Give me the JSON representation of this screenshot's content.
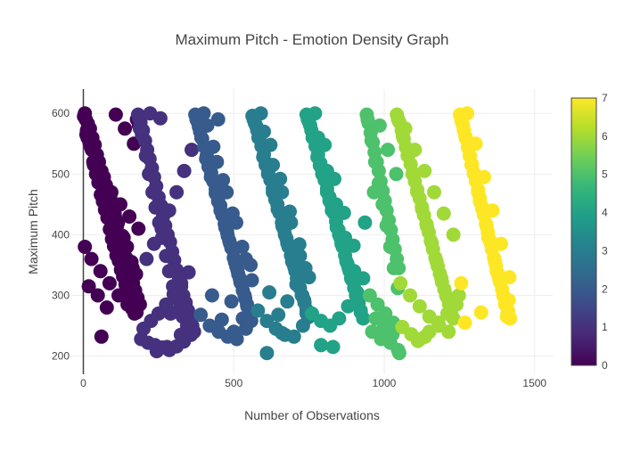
{
  "chart_data": {
    "type": "scatter",
    "title": "Maximum Pitch - Emotion Density Graph",
    "xlabel": "Number of Observations",
    "ylabel": "Maximum Pitch",
    "xlim": [
      -40,
      1560
    ],
    "ylim": [
      170,
      640
    ],
    "x_ticks": [
      0,
      500,
      1000,
      1500
    ],
    "y_ticks": [
      200,
      300,
      400,
      500,
      600
    ],
    "grid": true,
    "legend": "none",
    "colorbar": {
      "position": "right",
      "min": 0,
      "max": 7,
      "ticks": [
        0,
        1,
        2,
        3,
        4,
        5,
        6,
        7
      ],
      "colorscale": "Viridis",
      "colors": [
        "#440154",
        "#482878",
        "#3e4989",
        "#31688e",
        "#26828e",
        "#1f9e89",
        "#35b779",
        "#6ece58",
        "#b5de2b",
        "#fde725"
      ]
    },
    "color_variable_note_free": true,
    "groups": [
      {
        "emotion_value": 0,
        "x_range": [
          0,
          190
        ],
        "y_range": [
          230,
          600
        ],
        "x": [
          2,
          8,
          15,
          22,
          30,
          38,
          45,
          52,
          60,
          68,
          75,
          82,
          90,
          98,
          105,
          112,
          120,
          128,
          135,
          142,
          150,
          158,
          165,
          172,
          180,
          188,
          5,
          12,
          20,
          28,
          35,
          42,
          50,
          58,
          65,
          72,
          80,
          88,
          95,
          102,
          110,
          118,
          125,
          132,
          140,
          148,
          155,
          162,
          170,
          178,
          185,
          10,
          25,
          40,
          55,
          70,
          85,
          100,
          115,
          130,
          145,
          160,
          175,
          18,
          48,
          78,
          108,
          138,
          168,
          33,
          63,
          93,
          123,
          153,
          183,
          5,
          27,
          57,
          87,
          117,
          147,
          177,
          14,
          44,
          74,
          104,
          134,
          164,
          60
        ],
        "y": [
          595,
          590,
          583,
          575,
          560,
          548,
          532,
          520,
          505,
          495,
          482,
          470,
          460,
          445,
          430,
          415,
          400,
          388,
          375,
          362,
          350,
          335,
          320,
          308,
          296,
          285,
          600,
          572,
          553,
          540,
          515,
          500,
          486,
          466,
          455,
          441,
          428,
          409,
          393,
          381,
          366,
          357,
          342,
          331,
          318,
          305,
          292,
          278,
          270,
          590,
          580,
          565,
          545,
          525,
          505,
          485,
          465,
          440,
          420,
          398,
          380,
          355,
          335,
          315,
          300,
          280,
          598,
          575,
          550,
          520,
          490,
          470,
          450,
          430,
          410,
          380,
          360,
          340,
          320,
          300,
          285,
          272,
          560,
          530,
          480,
          435,
          395,
          345,
          232
        ]
      },
      {
        "emotion_value": 1,
        "x_range": [
          180,
          370
        ],
        "y_range": [
          205,
          600
        ],
        "x": [
          182,
          190,
          198,
          205,
          212,
          220,
          228,
          235,
          242,
          250,
          258,
          265,
          272,
          280,
          288,
          295,
          302,
          310,
          318,
          325,
          332,
          340,
          348,
          355,
          362,
          368,
          185,
          195,
          208,
          218,
          230,
          240,
          252,
          262,
          275,
          285,
          298,
          308,
          320,
          330,
          345,
          358,
          192,
          215,
          238,
          262,
          286,
          310,
          334,
          358,
          200,
          225,
          250,
          275,
          300,
          325,
          350,
          210,
          235,
          260,
          285,
          310,
          335,
          360,
          188,
          222,
          256,
          290,
          324,
          352,
          244,
          278
        ],
        "y": [
          598,
          585,
          572,
          555,
          540,
          525,
          510,
          495,
          480,
          462,
          448,
          430,
          415,
          400,
          388,
          372,
          358,
          342,
          330,
          315,
          300,
          288,
          275,
          262,
          250,
          240,
          592,
          565,
          530,
          500,
          470,
          445,
          420,
          395,
          365,
          340,
          315,
          295,
          278,
          265,
          250,
          238,
          228,
          222,
          218,
          214,
          210,
          216,
          224,
          235,
          245,
          258,
          270,
          285,
          302,
          320,
          338,
          360,
          385,
          410,
          440,
          470,
          505,
          540,
          575,
          600,
          592,
          270,
          235,
          260,
          208,
          215
        ]
      },
      {
        "emotion_value": 2,
        "x_range": [
          370,
          560
        ],
        "y_range": [
          225,
          600
        ],
        "x": [
          372,
          380,
          388,
          395,
          402,
          410,
          418,
          425,
          432,
          440,
          448,
          455,
          462,
          470,
          478,
          485,
          492,
          500,
          508,
          515,
          522,
          530,
          538,
          545,
          552,
          558,
          376,
          392,
          408,
          424,
          440,
          456,
          472,
          488,
          504,
          520,
          536,
          552,
          384,
          416,
          448,
          480,
          512,
          544,
          400,
          432,
          464,
          496,
          528,
          560,
          390,
          420,
          450,
          480,
          510,
          540,
          412,
          444,
          476,
          508,
          540,
          428,
          460,
          492,
          524,
          556,
          448,
          500,
          530
        ],
        "y": [
          598,
          586,
          570,
          558,
          545,
          530,
          516,
          502,
          488,
          475,
          460,
          448,
          432,
          418,
          404,
          390,
          378,
          362,
          348,
          335,
          322,
          308,
          295,
          282,
          270,
          258,
          590,
          560,
          525,
          495,
          468,
          440,
          412,
          385,
          355,
          328,
          300,
          272,
          578,
          512,
          455,
          398,
          342,
          285,
          600,
          545,
          490,
          435,
          380,
          325,
          268,
          250,
          240,
          232,
          228,
          245,
          580,
          520,
          470,
          420,
          360,
          300,
          260,
          290,
          320,
          350,
          590,
          240,
          262
        ]
      },
      {
        "emotion_value": 3,
        "x_range": [
          560,
          750
        ],
        "y_range": [
          205,
          600
        ],
        "x": [
          562,
          570,
          578,
          585,
          592,
          600,
          608,
          615,
          622,
          630,
          638,
          645,
          652,
          660,
          668,
          675,
          682,
          690,
          698,
          705,
          712,
          720,
          728,
          735,
          742,
          748,
          566,
          582,
          598,
          614,
          630,
          646,
          662,
          678,
          694,
          710,
          726,
          742,
          574,
          606,
          638,
          670,
          702,
          734,
          590,
          622,
          654,
          686,
          718,
          750,
          580,
          610,
          640,
          670,
          700,
          730,
          600,
          630,
          660,
          690,
          720,
          618,
          648,
          678,
          708,
          738,
          610,
          660
        ],
        "y": [
          596,
          584,
          572,
          560,
          546,
          532,
          518,
          505,
          490,
          476,
          462,
          450,
          436,
          420,
          408,
          394,
          380,
          366,
          352,
          340,
          326,
          312,
          300,
          288,
          276,
          264,
          590,
          560,
          528,
          500,
          470,
          442,
          414,
          386,
          356,
          328,
          300,
          270,
          580,
          515,
          458,
          400,
          346,
          292,
          600,
          548,
          492,
          438,
          384,
          330,
          275,
          258,
          245,
          235,
          232,
          250,
          570,
          515,
          470,
          420,
          365,
          305,
          268,
          290,
          318,
          345,
          205,
          238
        ]
      },
      {
        "emotion_value": 4,
        "x_range": [
          740,
          940
        ],
        "y_range": [
          210,
          600
        ],
        "x": [
          742,
          750,
          758,
          765,
          772,
          780,
          788,
          795,
          802,
          810,
          818,
          825,
          832,
          840,
          848,
          855,
          862,
          870,
          878,
          885,
          892,
          900,
          908,
          915,
          922,
          930,
          746,
          762,
          778,
          794,
          810,
          826,
          842,
          858,
          874,
          890,
          906,
          922,
          754,
          786,
          818,
          850,
          882,
          914,
          770,
          802,
          834,
          866,
          898,
          930,
          760,
          790,
          820,
          850,
          880,
          910,
          780,
          810,
          840,
          870,
          900,
          936,
          790,
          830
        ],
        "y": [
          598,
          586,
          572,
          560,
          546,
          532,
          518,
          504,
          490,
          476,
          462,
          450,
          436,
          422,
          408,
          394,
          380,
          366,
          352,
          340,
          326,
          312,
          300,
          288,
          275,
          262,
          590,
          560,
          528,
          500,
          470,
          440,
          412,
          385,
          356,
          328,
          300,
          272,
          580,
          514,
          456,
          400,
          345,
          292,
          600,
          548,
          492,
          436,
          382,
          328,
          270,
          258,
          250,
          262,
          282,
          305,
          560,
          505,
          450,
          395,
          340,
          420,
          218,
          215
        ]
      },
      {
        "emotion_value": 5,
        "x_range": [
          940,
          1050
        ],
        "y_range": [
          200,
          600
        ],
        "x": [
          942,
          948,
          955,
          962,
          968,
          975,
          982,
          988,
          995,
          1002,
          1008,
          1015,
          1022,
          1028,
          1035,
          1042,
          1048,
          945,
          958,
          970,
          982,
          995,
          1008,
          1020,
          1032,
          1045,
          952,
          978,
          1004,
          1030,
          960,
          990,
          1020,
          1046,
          972,
          1000,
          1028,
          985,
          1012,
          1040,
          966,
          1050
        ],
        "y": [
          598,
          584,
          568,
          552,
          536,
          520,
          505,
          488,
          472,
          456,
          440,
          424,
          408,
          392,
          376,
          360,
          345,
          590,
          555,
          520,
          485,
          450,
          415,
          380,
          345,
          312,
          300,
          285,
          270,
          255,
          240,
          228,
          222,
          210,
          262,
          248,
          236,
          580,
          540,
          500,
          470,
          205
        ]
      },
      {
        "emotion_value": 6,
        "x_range": [
          1040,
          1250
        ],
        "y_range": [
          220,
          600
        ],
        "x": [
          1042,
          1050,
          1058,
          1065,
          1072,
          1080,
          1088,
          1095,
          1102,
          1110,
          1118,
          1125,
          1132,
          1140,
          1148,
          1155,
          1162,
          1170,
          1178,
          1185,
          1192,
          1200,
          1208,
          1215,
          1222,
          1230,
          1046,
          1062,
          1078,
          1094,
          1110,
          1126,
          1142,
          1158,
          1174,
          1190,
          1206,
          1222,
          1054,
          1086,
          1118,
          1150,
          1182,
          1214,
          1070,
          1102,
          1134,
          1166,
          1198,
          1230,
          1060,
          1090,
          1120,
          1150,
          1180,
          1210,
          1240,
          1248,
          1112,
          1136
        ],
        "y": [
          598,
          586,
          572,
          558,
          544,
          530,
          516,
          502,
          488,
          474,
          460,
          446,
          432,
          418,
          404,
          390,
          376,
          362,
          348,
          336,
          322,
          310,
          298,
          286,
          274,
          262,
          590,
          562,
          530,
          500,
          470,
          442,
          414,
          386,
          356,
          328,
          300,
          270,
          320,
          300,
          282,
          265,
          250,
          240,
          575,
          540,
          505,
          470,
          435,
          400,
          248,
          236,
          228,
          240,
          255,
          270,
          285,
          300,
          225,
          232
        ]
      },
      {
        "emotion_value": 7,
        "x_range": [
          1250,
          1420
        ],
        "y_range": [
          250,
          600
        ],
        "x": [
          1252,
          1258,
          1265,
          1272,
          1278,
          1285,
          1292,
          1298,
          1305,
          1312,
          1318,
          1325,
          1332,
          1338,
          1345,
          1352,
          1358,
          1365,
          1372,
          1378,
          1385,
          1392,
          1398,
          1405,
          1412,
          1418,
          1256,
          1270,
          1284,
          1298,
          1312,
          1326,
          1340,
          1354,
          1368,
          1382,
          1396,
          1410,
          1262,
          1290,
          1318,
          1346,
          1374,
          1402,
          1276,
          1304,
          1332,
          1360,
          1388,
          1416,
          1268,
          1322,
          1408,
          1414,
          1256
        ],
        "y": [
          598,
          586,
          572,
          558,
          544,
          530,
          516,
          502,
          488,
          474,
          460,
          446,
          432,
          418,
          404,
          390,
          376,
          362,
          348,
          336,
          322,
          310,
          298,
          286,
          274,
          262,
          590,
          562,
          530,
          500,
          470,
          442,
          414,
          386,
          356,
          328,
          300,
          270,
          580,
          515,
          455,
          395,
          340,
          285,
          600,
          550,
          495,
          440,
          385,
          330,
          255,
          272,
          265,
          292,
          320
        ]
      }
    ]
  }
}
